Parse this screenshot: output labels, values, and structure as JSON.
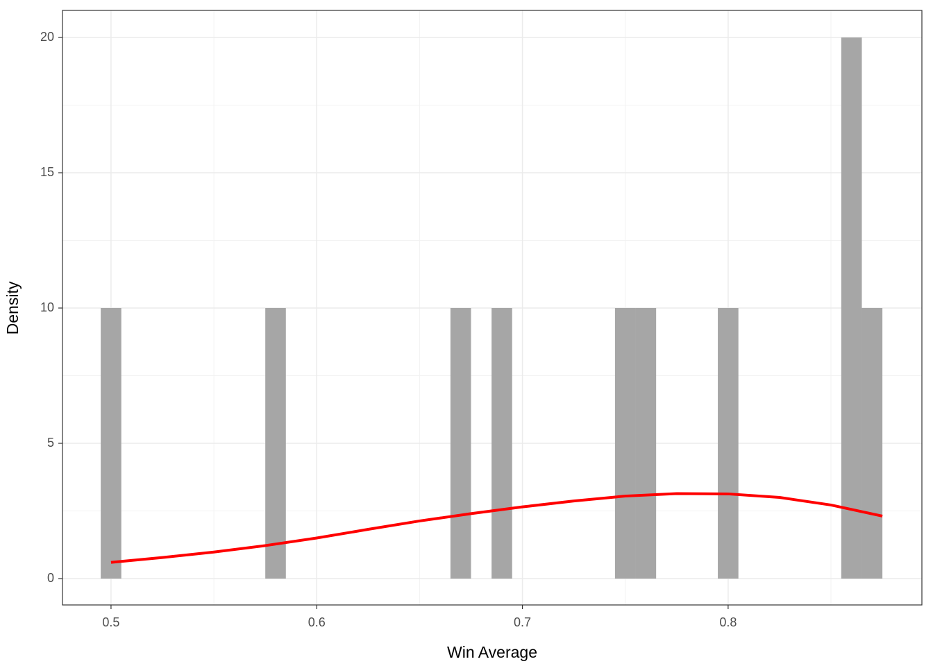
{
  "chart_data": {
    "type": "histogram",
    "x_label": "Win Average",
    "y_label": "Density",
    "bins": [
      0.495,
      0.505,
      0.515,
      0.525,
      0.535,
      0.545,
      0.555,
      0.565,
      0.575,
      0.585,
      0.595,
      0.605,
      0.615,
      0.625,
      0.635,
      0.645,
      0.655,
      0.665,
      0.675,
      0.685,
      0.695,
      0.705,
      0.715,
      0.725,
      0.735,
      0.745,
      0.755,
      0.765,
      0.775,
      0.785,
      0.795,
      0.805,
      0.815,
      0.825,
      0.835,
      0.845,
      0.855,
      0.865,
      0.875
    ],
    "values": [
      10,
      0,
      0,
      0,
      0,
      0,
      0,
      0,
      10,
      0,
      0,
      0,
      0,
      0,
      0,
      0,
      0,
      10,
      0,
      10,
      0,
      0,
      0,
      0,
      0,
      10,
      10,
      0,
      0,
      0,
      10,
      0,
      0,
      0,
      0,
      0,
      20,
      10
    ],
    "color": "#a6a6a6",
    "density": {
      "color": "#ff0000",
      "x": [
        0.5,
        0.525,
        0.55,
        0.575,
        0.6,
        0.625,
        0.65,
        0.675,
        0.7,
        0.725,
        0.75,
        0.775,
        0.8,
        0.825,
        0.85,
        0.875
      ],
      "values": [
        0.6,
        0.78,
        0.98,
        1.22,
        1.5,
        1.82,
        2.13,
        2.4,
        2.65,
        2.87,
        3.05,
        3.14,
        3.13,
        3.0,
        2.72,
        2.31
      ]
    },
    "xlim": [
      0.4764,
      0.8942
    ],
    "ylim": [
      -0.974,
      21.0
    ],
    "xticks": [
      0.5,
      0.6,
      0.7,
      0.8
    ],
    "yticks": [
      0,
      5,
      10,
      15,
      20
    ],
    "x_minor_grid": [
      0.55,
      0.65,
      0.75,
      0.85
    ],
    "y_minor_grid": [
      2.5,
      7.5,
      12.5,
      17.5
    ],
    "grid": true
  }
}
